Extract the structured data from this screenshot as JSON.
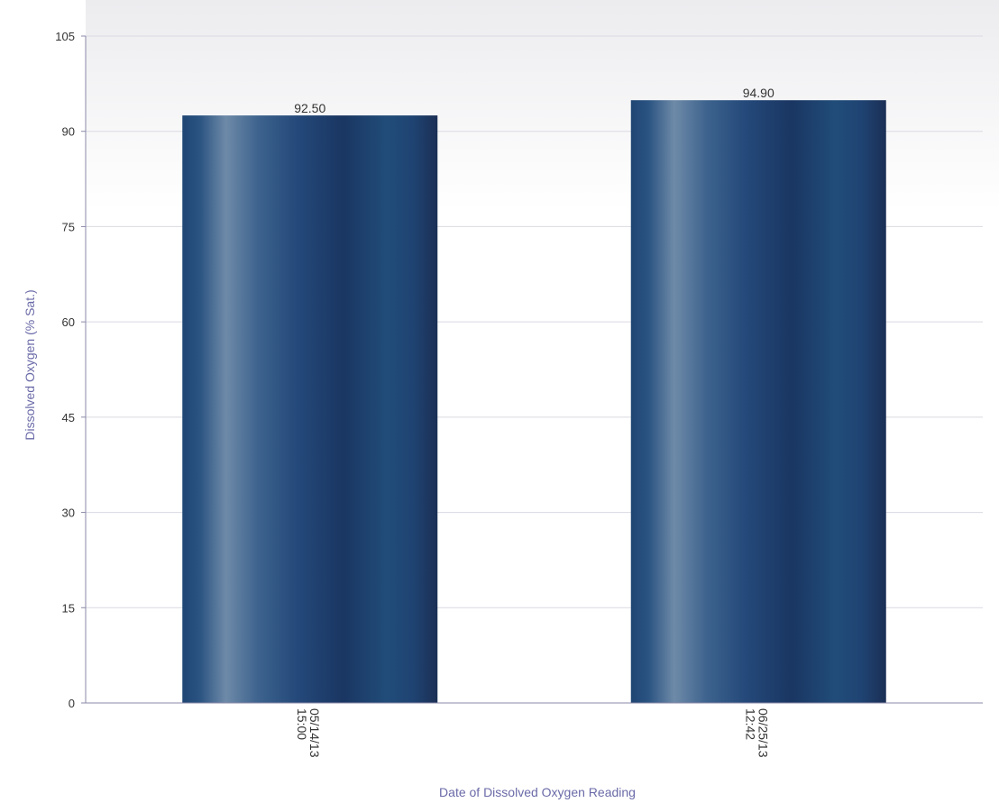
{
  "chart_data": {
    "type": "bar",
    "categories": [
      {
        "line1": "05/14/13",
        "line2": "15:00"
      },
      {
        "line1": "06/25/13",
        "line2": "12:42"
      }
    ],
    "values": [
      92.5,
      94.9
    ],
    "value_labels": [
      "92.50",
      "94.90"
    ],
    "xlabel": "Date of Dissolved Oxygen Reading",
    "ylabel": "Dissolved Oxygen (% Sat.)",
    "ylim": [
      0,
      105
    ],
    "yticks": [
      0,
      15,
      30,
      45,
      60,
      75,
      90,
      105
    ],
    "grid": true,
    "legend": "none"
  },
  "colors": {
    "bar_dark": "#1b3560",
    "bar_mid": "#224a78",
    "bar_light": "#6e8aa8",
    "axis_label": "#6a6aa8",
    "tick_label": "#333333",
    "gridline": "#d9d9e2",
    "axis_line": "#8a8aa8",
    "plot_bg_top": "#eeeef0"
  }
}
